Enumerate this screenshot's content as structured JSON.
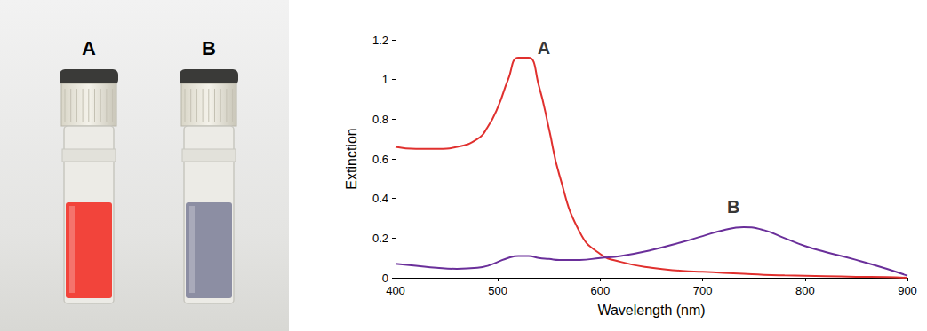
{
  "photo": {
    "vials": [
      {
        "label": "A",
        "color": "#f2443b"
      },
      {
        "label": "B",
        "color": "#8c8ea3"
      }
    ]
  },
  "chart_data": {
    "type": "line",
    "xlabel": "Wavelength (nm)",
    "ylabel": "Extinction",
    "x": [
      400,
      420,
      440,
      460,
      480,
      490,
      500,
      510,
      520,
      530,
      540,
      550,
      560,
      580,
      600,
      620,
      650,
      680,
      700,
      720,
      740,
      760,
      780,
      800,
      820,
      850,
      880,
      900
    ],
    "series": [
      {
        "name": "A",
        "color": "#e0302e",
        "line_style": "solid",
        "marker": "none",
        "values": [
          0.66,
          0.65,
          0.65,
          0.66,
          0.7,
          0.76,
          0.86,
          1.0,
          1.11,
          1.11,
          0.97,
          0.75,
          0.52,
          0.23,
          0.12,
          0.08,
          0.05,
          0.035,
          0.03,
          0.025,
          0.02,
          0.015,
          0.012,
          0.01,
          0.008,
          0.005,
          0.003,
          0.0
        ]
      },
      {
        "name": "B",
        "color": "#6a2f9a",
        "line_style": "solid",
        "marker": "none",
        "values": [
          0.07,
          0.06,
          0.05,
          0.045,
          0.05,
          0.06,
          0.08,
          0.1,
          0.11,
          0.11,
          0.1,
          0.095,
          0.09,
          0.09,
          0.1,
          0.11,
          0.14,
          0.18,
          0.21,
          0.24,
          0.255,
          0.24,
          0.2,
          0.16,
          0.13,
          0.09,
          0.045,
          0.01
        ]
      }
    ],
    "annotations": [
      {
        "text": "A",
        "x": 545,
        "y": 1.16
      },
      {
        "text": "B",
        "x": 730,
        "y": 0.36
      }
    ],
    "xlim": [
      400,
      900
    ],
    "xticks": [
      400,
      500,
      600,
      700,
      800,
      900
    ],
    "ylim": [
      0,
      1.2
    ],
    "yticks": [
      0,
      0.2,
      0.4,
      0.6,
      0.8,
      1,
      1.2
    ],
    "grid": false
  }
}
